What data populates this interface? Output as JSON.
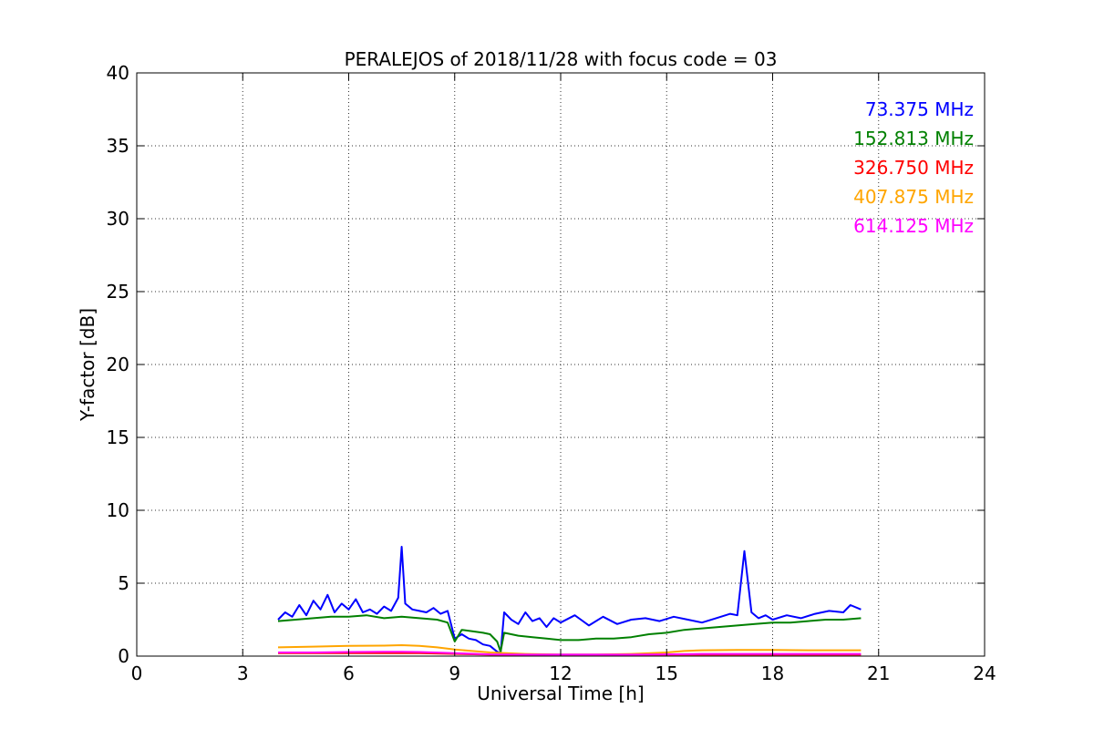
{
  "chart_data": {
    "type": "line",
    "title": "PERALEJOS of 2018/11/28 with focus code = 03",
    "xlabel": "Universal Time [h]",
    "ylabel": "Y-factor [dB]",
    "xlim": [
      0,
      24
    ],
    "ylim": [
      0,
      40
    ],
    "xticks": [
      "0",
      "3",
      "6",
      "9",
      "12",
      "15",
      "18",
      "21",
      "24"
    ],
    "yticks": [
      "0",
      "5",
      "10",
      "15",
      "20",
      "25",
      "30",
      "35",
      "40"
    ],
    "grid": true,
    "legend_placement": "top-right",
    "series": [
      {
        "name": "73.375 MHz",
        "color": "#0000ff",
        "x": [
          4.0,
          4.2,
          4.4,
          4.6,
          4.8,
          5.0,
          5.2,
          5.4,
          5.6,
          5.8,
          6.0,
          6.2,
          6.4,
          6.6,
          6.8,
          7.0,
          7.2,
          7.4,
          7.5,
          7.6,
          7.8,
          8.0,
          8.2,
          8.4,
          8.6,
          8.8,
          9.0,
          9.2,
          9.4,
          9.6,
          9.8,
          10.0,
          10.2,
          10.3,
          10.4,
          10.6,
          10.8,
          11.0,
          11.2,
          11.4,
          11.6,
          11.8,
          12.0,
          12.4,
          12.8,
          13.2,
          13.6,
          14.0,
          14.4,
          14.8,
          15.2,
          15.6,
          16.0,
          16.4,
          16.8,
          17.0,
          17.2,
          17.4,
          17.6,
          17.8,
          18.0,
          18.4,
          18.8,
          19.2,
          19.6,
          20.0,
          20.2,
          20.5
        ],
        "values": [
          2.5,
          3.0,
          2.7,
          3.5,
          2.8,
          3.8,
          3.2,
          4.2,
          3.0,
          3.6,
          3.2,
          3.9,
          3.0,
          3.2,
          2.9,
          3.4,
          3.1,
          4.0,
          7.5,
          3.6,
          3.2,
          3.1,
          3.0,
          3.3,
          2.9,
          3.1,
          1.2,
          1.5,
          1.2,
          1.1,
          0.8,
          0.7,
          0.3,
          0.2,
          3.0,
          2.5,
          2.2,
          3.0,
          2.4,
          2.6,
          2.0,
          2.6,
          2.3,
          2.8,
          2.1,
          2.7,
          2.2,
          2.5,
          2.6,
          2.4,
          2.7,
          2.5,
          2.3,
          2.6,
          2.9,
          2.8,
          7.2,
          3.0,
          2.6,
          2.8,
          2.5,
          2.8,
          2.6,
          2.9,
          3.1,
          3.0,
          3.5,
          3.2
        ]
      },
      {
        "name": "152.813 MHz",
        "color": "#008000",
        "x": [
          4.0,
          4.5,
          5.0,
          5.5,
          6.0,
          6.5,
          7.0,
          7.5,
          8.0,
          8.5,
          8.8,
          9.0,
          9.2,
          9.5,
          9.8,
          10.0,
          10.2,
          10.3,
          10.4,
          10.8,
          11.2,
          11.6,
          12.0,
          12.5,
          13.0,
          13.5,
          14.0,
          14.5,
          15.0,
          15.5,
          16.0,
          16.5,
          17.0,
          17.5,
          18.0,
          18.5,
          19.0,
          19.5,
          20.0,
          20.5
        ],
        "values": [
          2.4,
          2.5,
          2.6,
          2.7,
          2.7,
          2.8,
          2.6,
          2.7,
          2.6,
          2.5,
          2.3,
          1.0,
          1.8,
          1.7,
          1.6,
          1.5,
          1.0,
          0.3,
          1.6,
          1.4,
          1.3,
          1.2,
          1.1,
          1.1,
          1.2,
          1.2,
          1.3,
          1.5,
          1.6,
          1.8,
          1.9,
          2.0,
          2.1,
          2.2,
          2.3,
          2.3,
          2.4,
          2.5,
          2.5,
          2.6
        ]
      },
      {
        "name": "326.750 MHz",
        "color": "#ff0000",
        "x": [
          4.0,
          6.0,
          8.0,
          10.0,
          12.0,
          14.0,
          16.0,
          18.0,
          20.5
        ],
        "values": [
          0.2,
          0.2,
          0.2,
          0.1,
          0.1,
          0.1,
          0.1,
          0.1,
          0.1
        ]
      },
      {
        "name": "407.875 MHz",
        "color": "#ffa500",
        "x": [
          4.0,
          5.0,
          6.0,
          7.0,
          7.5,
          8.0,
          8.5,
          9.0,
          9.5,
          10.0,
          11.0,
          12.0,
          13.0,
          14.0,
          15.0,
          15.5,
          16.0,
          17.0,
          18.0,
          19.0,
          20.0,
          20.5
        ],
        "values": [
          0.6,
          0.65,
          0.7,
          0.72,
          0.75,
          0.7,
          0.6,
          0.45,
          0.35,
          0.25,
          0.15,
          0.1,
          0.1,
          0.15,
          0.25,
          0.35,
          0.4,
          0.42,
          0.42,
          0.4,
          0.4,
          0.4
        ]
      },
      {
        "name": "614.125 MHz",
        "color": "#ff00ff",
        "x": [
          4.0,
          5.0,
          6.0,
          7.0,
          7.5,
          8.0,
          9.0,
          10.0,
          11.0,
          12.0,
          13.0,
          14.0,
          15.0,
          16.0,
          17.0,
          18.0,
          19.0,
          20.0,
          20.5
        ],
        "values": [
          0.25,
          0.25,
          0.28,
          0.3,
          0.3,
          0.28,
          0.2,
          0.12,
          0.1,
          0.1,
          0.1,
          0.1,
          0.12,
          0.15,
          0.15,
          0.15,
          0.15,
          0.15,
          0.15
        ]
      }
    ]
  }
}
